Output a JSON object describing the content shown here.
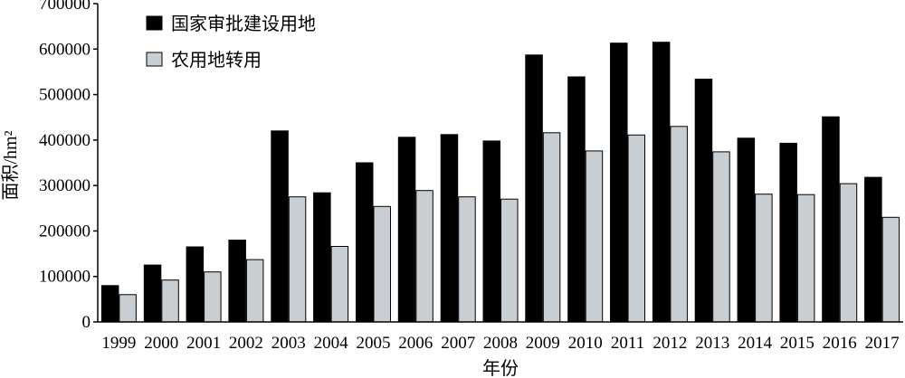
{
  "chart_data": {
    "type": "bar",
    "title": "",
    "xlabel": "年份",
    "ylabel": "面积/hm²",
    "ylim": [
      0,
      700000
    ],
    "yticks": [
      0,
      100000,
      200000,
      300000,
      400000,
      500000,
      600000,
      700000
    ],
    "grid": false,
    "legend_position": "top-left",
    "categories": [
      "1999",
      "2000",
      "2001",
      "2002",
      "2003",
      "2004",
      "2005",
      "2006",
      "2007",
      "2008",
      "2009",
      "2010",
      "2011",
      "2012",
      "2013",
      "2014",
      "2015",
      "2016",
      "2017"
    ],
    "series": [
      {
        "name": "国家审批建设用地",
        "color": "#000000",
        "values": [
          80000,
          125000,
          165000,
          180000,
          420000,
          284000,
          350000,
          406000,
          412000,
          398000,
          587000,
          539000,
          613000,
          615000,
          534000,
          404000,
          393000,
          451000,
          318000
        ]
      },
      {
        "name": "农用地转用",
        "color": "#c8ced2",
        "values": [
          60000,
          92000,
          110000,
          137000,
          275000,
          166000,
          254000,
          289000,
          275000,
          270000,
          416000,
          376000,
          411000,
          430000,
          374000,
          281000,
          280000,
          304000,
          230000
        ]
      }
    ]
  }
}
